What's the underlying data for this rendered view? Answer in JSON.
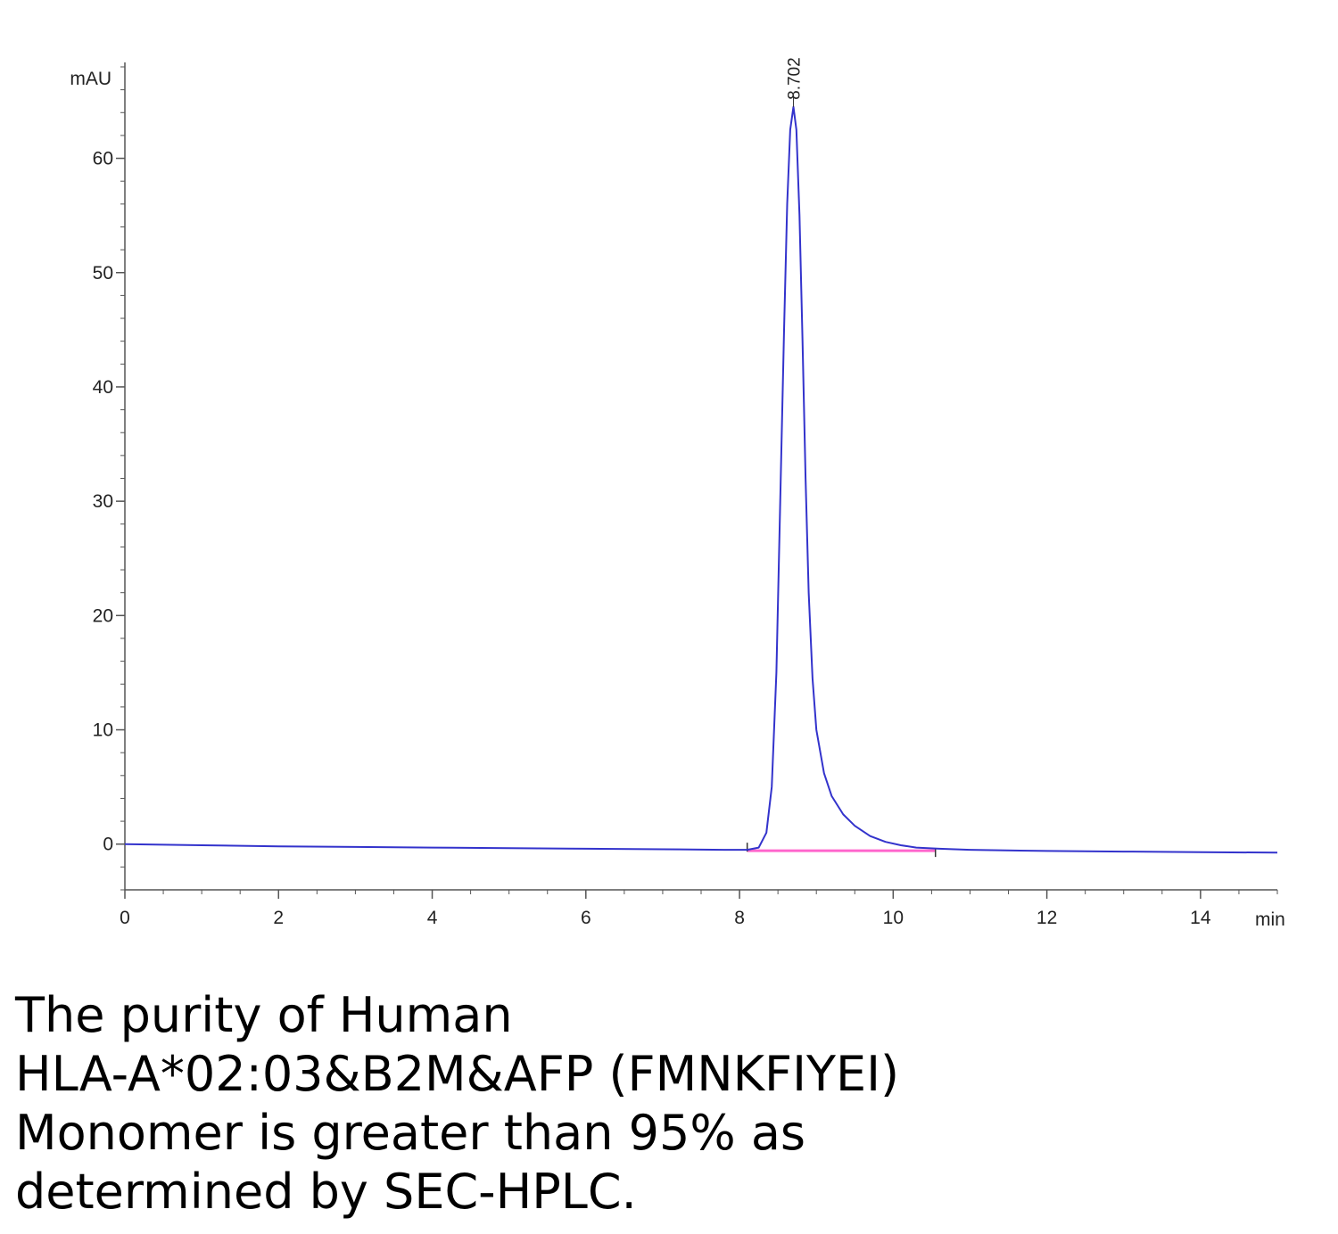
{
  "chart_data": {
    "type": "line",
    "xlabel": "min",
    "ylabel": "mAU",
    "xlim": [
      0,
      15
    ],
    "ylim": [
      -4,
      68
    ],
    "x_ticks": [
      0,
      2,
      4,
      6,
      8,
      10,
      12,
      14
    ],
    "x_tick_labels": [
      "0",
      "2",
      "4",
      "6",
      "8",
      "10",
      "12",
      "14"
    ],
    "y_ticks": [
      0,
      10,
      20,
      30,
      40,
      50,
      60
    ],
    "y_tick_labels": [
      "0",
      "10",
      "20",
      "30",
      "40",
      "50",
      "60"
    ],
    "grid": false,
    "legend": "none",
    "series": [
      {
        "color": "#3333cc",
        "x": [
          0,
          1,
          2,
          3,
          4,
          5,
          6,
          7,
          7.8,
          8.1,
          8.25,
          8.35,
          8.42,
          8.48,
          8.53,
          8.58,
          8.62,
          8.66,
          8.702,
          8.74,
          8.78,
          8.82,
          8.86,
          8.9,
          8.95,
          9.0,
          9.1,
          9.2,
          9.35,
          9.5,
          9.7,
          9.9,
          10.1,
          10.3,
          10.6,
          11,
          12,
          13,
          14,
          15
        ],
        "y": [
          0,
          -0.1,
          -0.2,
          -0.25,
          -0.3,
          -0.35,
          -0.4,
          -0.45,
          -0.5,
          -0.5,
          -0.3,
          1.0,
          5.0,
          15.0,
          30.0,
          45.0,
          56.0,
          62.5,
          64.5,
          62.5,
          55.0,
          44.0,
          32.0,
          22.0,
          14.5,
          10.0,
          6.2,
          4.2,
          2.6,
          1.6,
          0.7,
          0.2,
          -0.1,
          -0.3,
          -0.4,
          -0.5,
          -0.6,
          -0.65,
          -0.7,
          -0.75
        ]
      }
    ],
    "baseline": {
      "color": "#ff66cc",
      "x": [
        8.1,
        10.55
      ],
      "y": [
        -0.5,
        -0.5
      ]
    },
    "annotations": [
      {
        "text": "8.702",
        "x": 8.702,
        "y": 64.5
      }
    ]
  },
  "caption": {
    "lines": [
      "The purity of Human",
      "HLA-A*02:03&B2M&AFP (FMNKFIYEI)",
      "Monomer is greater than 95% as",
      "determined by SEC-HPLC."
    ]
  }
}
